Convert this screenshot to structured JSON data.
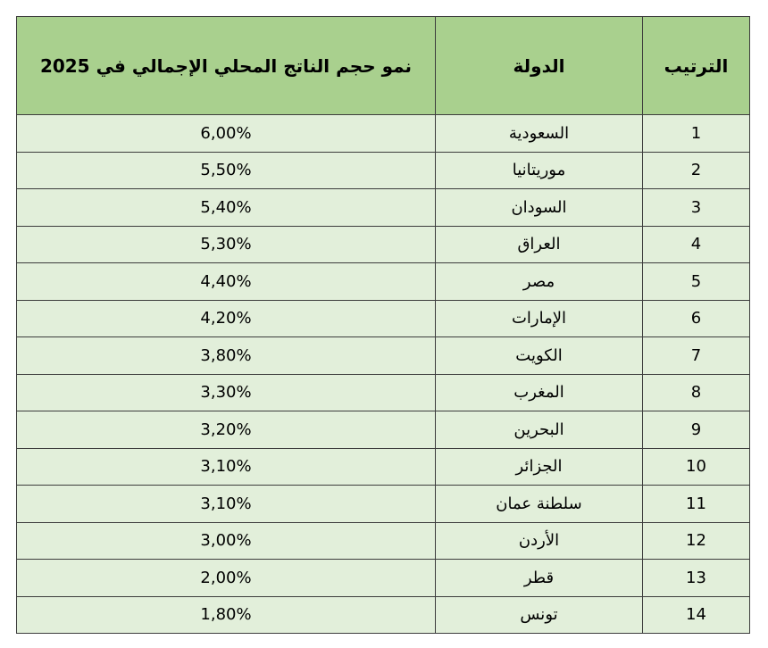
{
  "table": {
    "headers": {
      "rank": "الترتيب",
      "country": "الدولة",
      "growth": "نمو حجم الناتج المحلي الإجمالي في 2025"
    },
    "rows": [
      {
        "rank": "1",
        "country": "السعودية",
        "growth": "6,00%"
      },
      {
        "rank": "2",
        "country": "موريتانيا",
        "growth": "5,50%"
      },
      {
        "rank": "3",
        "country": "السودان",
        "growth": "5,40%"
      },
      {
        "rank": "4",
        "country": "العراق",
        "growth": "5,30%"
      },
      {
        "rank": "5",
        "country": "مصر",
        "growth": "4,40%"
      },
      {
        "rank": "6",
        "country": "الإمارات",
        "growth": "4,20%"
      },
      {
        "rank": "7",
        "country": "الكويت",
        "growth": "3,80%"
      },
      {
        "rank": "8",
        "country": "المغرب",
        "growth": "3,30%"
      },
      {
        "rank": "9",
        "country": "البحرين",
        "growth": "3,20%"
      },
      {
        "rank": "10",
        "country": "الجزائر",
        "growth": "3,10%"
      },
      {
        "rank": "11",
        "country": "سلطنة عمان",
        "growth": "3,10%"
      },
      {
        "rank": "12",
        "country": "الأردن",
        "growth": "3,00%"
      },
      {
        "rank": "13",
        "country": "قطر",
        "growth": "2,00%"
      },
      {
        "rank": "14",
        "country": "تونس",
        "growth": "1,80%"
      }
    ]
  },
  "colors": {
    "header_bg": "#a9d08e",
    "row_bg": "#e2efda",
    "border": "#3c3c3c"
  }
}
